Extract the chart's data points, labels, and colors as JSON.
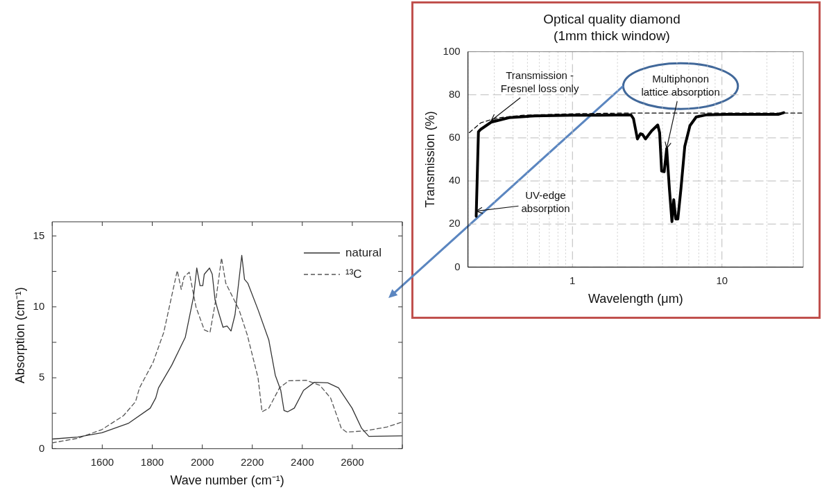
{
  "chart_data": [
    {
      "type": "line",
      "title": "Optical quality diamond",
      "subtitle": "(1mm thick window)",
      "xlabel": "Wavelength (μm)",
      "ylabel": "Transmission (%)",
      "log": "x",
      "grid": true,
      "legend": false,
      "marker": "none",
      "xlim": [
        0.2,
        35
      ],
      "ylim": [
        0,
        100
      ],
      "xticks": [
        {
          "value": 0.2,
          "label": null
        },
        {
          "value": 0.3,
          "label": null
        },
        {
          "value": 0.4,
          "label": null
        },
        {
          "value": 0.5,
          "label": null
        },
        {
          "value": 0.6,
          "label": null
        },
        {
          "value": 0.7,
          "label": null
        },
        {
          "value": 0.8,
          "label": null
        },
        {
          "value": 0.9,
          "label": null
        },
        1,
        {
          "value": 2,
          "label": null
        },
        {
          "value": 3,
          "label": null
        },
        {
          "value": 4,
          "label": null
        },
        {
          "value": 5,
          "label": null
        },
        {
          "value": 6,
          "label": null
        },
        {
          "value": 7,
          "label": null
        },
        {
          "value": 8,
          "label": null
        },
        {
          "value": 9,
          "label": null
        },
        10,
        {
          "value": 20,
          "label": null
        },
        {
          "value": 30,
          "label": null
        }
      ],
      "yticks": [
        0,
        20,
        40,
        60,
        80,
        100
      ],
      "series": [
        {
          "color": "#000000",
          "line_style": "solid",
          "x": [
            0.227,
            0.235,
            0.244,
            0.286,
            0.377,
            0.56,
            1.0,
            1.5,
            2.46,
            2.56,
            2.72,
            2.85,
            2.94,
            3.08,
            3.38,
            3.72,
            3.83,
            3.95,
            4.11,
            4.27,
            4.45,
            4.63,
            4.76,
            4.91,
            5.07,
            5.32,
            5.64,
            6.11,
            6.73,
            7.89,
            10.8,
            16.1,
            23.8,
            25.9
          ],
          "values": [
            23.6,
            62.8,
            64,
            67.3,
            69.4,
            70.2,
            70.5,
            70.5,
            70.7,
            68.9,
            59.5,
            61.9,
            61.6,
            59.5,
            63.2,
            66,
            62.4,
            44.6,
            44.3,
            55.1,
            36.5,
            21.1,
            31.3,
            22.3,
            22.3,
            36.5,
            56,
            65.7,
            69.7,
            70.7,
            70.9,
            70.9,
            70.9,
            71.7
          ]
        },
        {
          "color": "#000000",
          "line_style": "dashed",
          "x": [
            0.204,
            0.244,
            0.309,
            0.46,
            1,
            2,
            35
          ],
          "values": [
            62.4,
            67,
            69.2,
            70.5,
            71.2,
            71.5,
            71.5
          ]
        }
      ],
      "annotations": [
        {
          "text": "Transmission - Fresnel loss only",
          "x": 0.286,
          "y": 68
        },
        {
          "text": "Multiphonon lattice absorption",
          "x": 4.27,
          "y": 55.1
        },
        {
          "text": "UV-edge absorption",
          "x": 0.227,
          "y": 26
        }
      ]
    },
    {
      "type": "line",
      "xlabel": "Wave number (cm⁻¹)",
      "ylabel": "Absorption (cm⁻¹)",
      "grid": false,
      "legend": "top right",
      "marker": "none",
      "xlim": [
        1400,
        2800
      ],
      "ylim": [
        0,
        16
      ],
      "xticks": [
        {
          "value": 1400,
          "label": null
        },
        1600,
        1800,
        2000,
        2200,
        2400,
        2600,
        {
          "value": 2800,
          "label": null
        }
      ],
      "yticks": [
        0,
        {
          "value": 2.5,
          "label": null
        },
        5,
        {
          "value": 7.5,
          "label": null
        },
        10,
        {
          "value": 12.5,
          "label": null
        },
        15
      ],
      "series": [
        {
          "name": "natural",
          "color": "#333333",
          "line_style": "solid",
          "x": [
            1400,
            1502,
            1599,
            1706,
            1792,
            1814,
            1825,
            1878,
            1932,
            1965,
            1978,
            1991,
            2002,
            2008,
            2029,
            2040,
            2051,
            2062,
            2083,
            2099,
            2115,
            2131,
            2158,
            2169,
            2182,
            2223,
            2266,
            2292,
            2314,
            2327,
            2341,
            2368,
            2405,
            2448,
            2502,
            2545,
            2599,
            2637,
            2666,
            2800
          ],
          "values": [
            0.68,
            0.82,
            1.12,
            1.8,
            2.86,
            3.58,
            4.29,
            5.89,
            7.85,
            10.7,
            12.74,
            11.5,
            11.5,
            12.3,
            12.74,
            12.3,
            10.5,
            9.8,
            8.56,
            8.65,
            8.3,
            9.45,
            13.63,
            11.94,
            11.67,
            9.8,
            7.67,
            5.18,
            4.11,
            2.69,
            2.6,
            2.86,
            4.11,
            4.68,
            4.64,
            4.29,
            2.86,
            1.44,
            0.87,
            0.91
          ]
        },
        {
          "name": "¹³C",
          "color": "#555555",
          "line_style": "dashed",
          "x": [
            1400,
            1502,
            1599,
            1685,
            1733,
            1749,
            1803,
            1846,
            1900,
            1916,
            1927,
            1948,
            1975,
            2008,
            2031,
            2056,
            2077,
            2094,
            2147,
            2180,
            2223,
            2239,
            2266,
            2309,
            2346,
            2416,
            2470,
            2513,
            2556,
            2577,
            2653,
            2739,
            2800
          ],
          "values": [
            0.41,
            0.73,
            1.35,
            2.33,
            3.31,
            4.29,
            6.07,
            8.2,
            12.56,
            11.23,
            12.1,
            12.44,
            9.98,
            8.38,
            8.2,
            10.7,
            13.45,
            11.67,
            9.8,
            8.02,
            5.0,
            2.6,
            2.86,
            4.29,
            4.79,
            4.82,
            4.47,
            3.58,
            1.44,
            1.17,
            1.26,
            1.53,
            1.89
          ]
        }
      ]
    }
  ]
}
